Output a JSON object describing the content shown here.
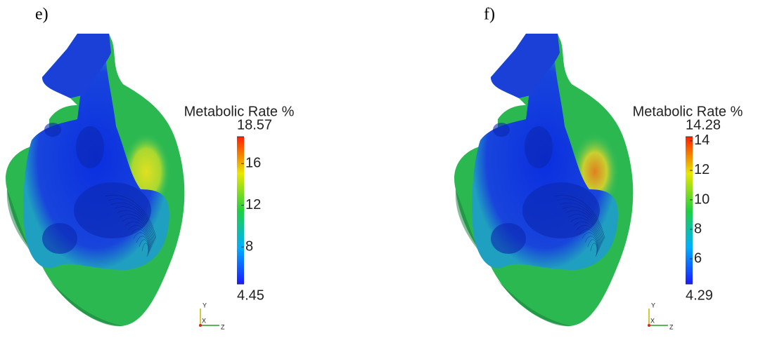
{
  "panels": [
    {
      "label": "e)",
      "colorbar": {
        "title": "Metabolic Rate %",
        "range": [
          4.45,
          18.57
        ],
        "ticks": [
          16,
          12,
          8
        ]
      },
      "axes_labels": [
        "Y",
        "X",
        "Z"
      ]
    },
    {
      "label": "f)",
      "colorbar": {
        "title": "Metabolic Rate %",
        "range": [
          4.29,
          14.28
        ],
        "ticks": [
          14,
          12,
          10,
          8,
          6
        ]
      },
      "axes_labels": [
        "Y",
        "X",
        "Z"
      ]
    }
  ]
}
